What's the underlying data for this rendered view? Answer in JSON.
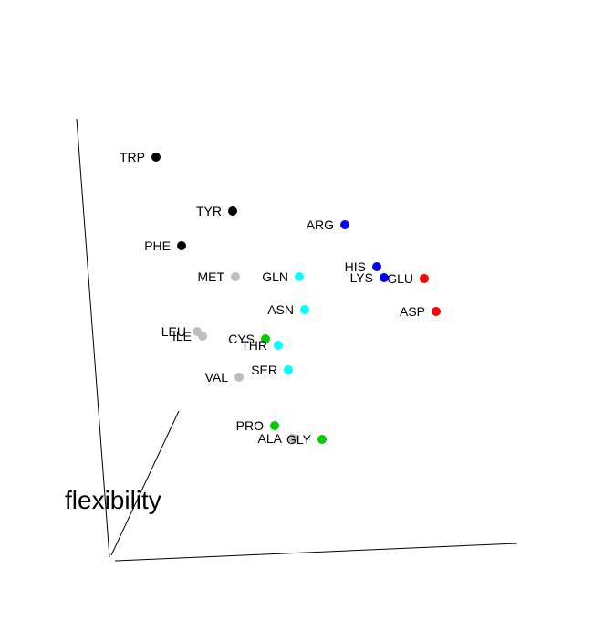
{
  "chart_data": {
    "type": "scatter",
    "title": "",
    "axis_title": "flexibility",
    "colors": {
      "black": "#000000",
      "gray": "#bebebe",
      "cyan": "#00ffff",
      "blue": "#0000ff",
      "red": "#ff0000",
      "green": "#00cd00"
    },
    "points": [
      {
        "label": "TRP",
        "color": "black"
      },
      {
        "label": "TYR",
        "color": "black"
      },
      {
        "label": "PHE",
        "color": "black"
      },
      {
        "label": "ARG",
        "color": "blue"
      },
      {
        "label": "HIS",
        "color": "blue"
      },
      {
        "label": "LYS",
        "color": "blue"
      },
      {
        "label": "GLU",
        "color": "red"
      },
      {
        "label": "ASP",
        "color": "red"
      },
      {
        "label": "MET",
        "color": "gray"
      },
      {
        "label": "GLN",
        "color": "cyan"
      },
      {
        "label": "ASN",
        "color": "cyan"
      },
      {
        "label": "LEU",
        "color": "gray"
      },
      {
        "label": "ILE",
        "color": "gray"
      },
      {
        "label": "CYS",
        "color": "green"
      },
      {
        "label": "THR",
        "color": "cyan"
      },
      {
        "label": "SER",
        "color": "cyan"
      },
      {
        "label": "VAL",
        "color": "gray"
      },
      {
        "label": "PRO",
        "color": "green"
      },
      {
        "label": "ALA",
        "color": "gray"
      },
      {
        "label": "GLY",
        "color": "green"
      }
    ]
  }
}
